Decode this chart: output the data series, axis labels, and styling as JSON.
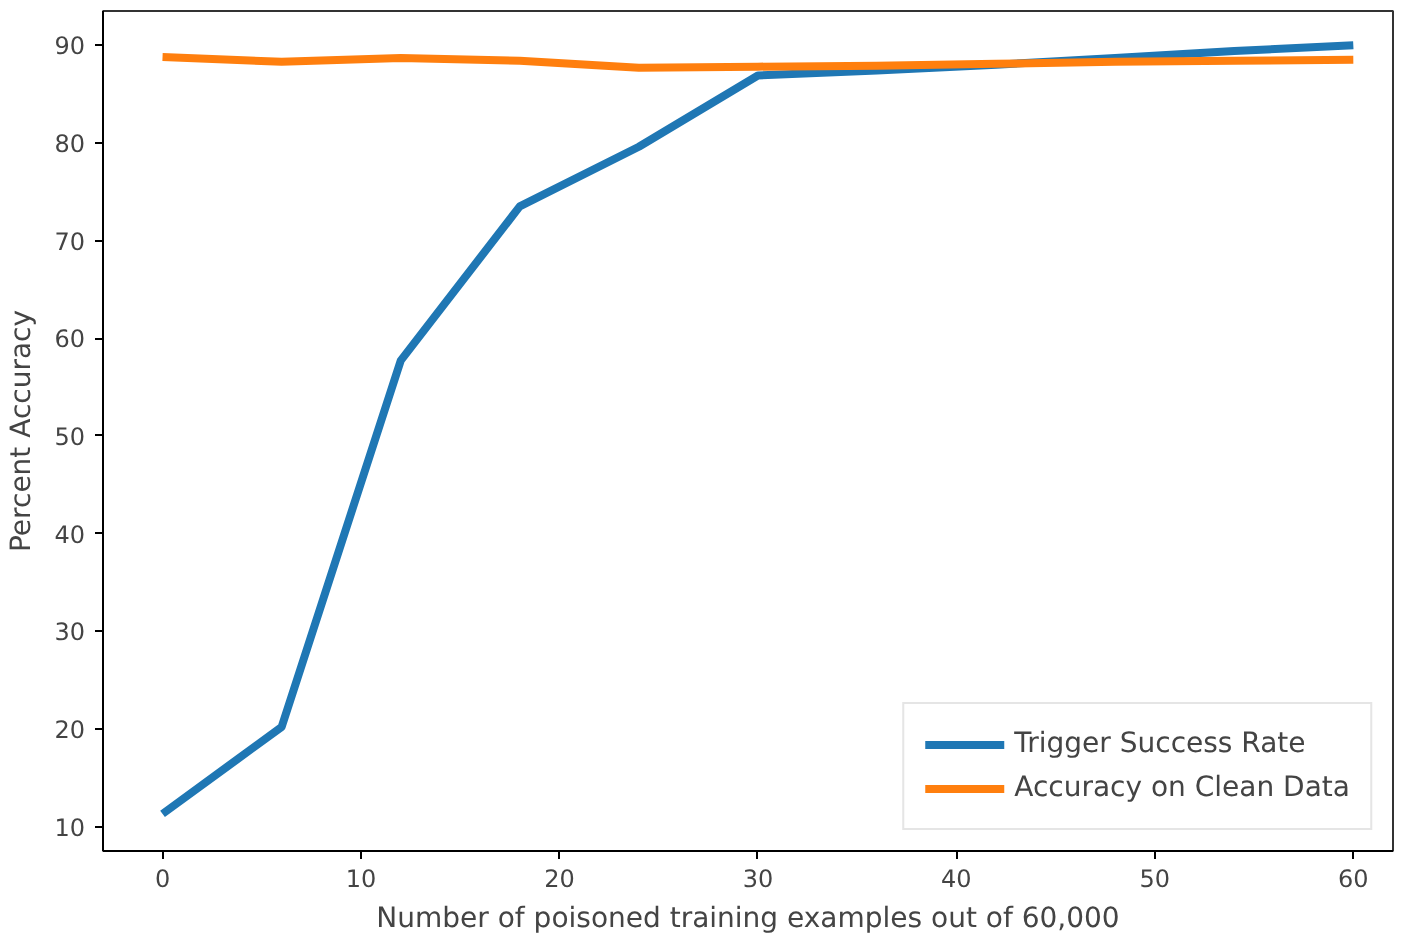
{
  "chart_data": {
    "type": "line",
    "xlabel": "Number of poisoned training examples out of 60,000",
    "ylabel": "Percent Accuracy",
    "x": [
      0,
      6,
      12,
      18,
      24,
      30,
      36,
      42,
      48,
      54,
      60
    ],
    "series": [
      {
        "name": "Trigger Success Rate",
        "color": "#1f77b4",
        "values": [
          11.3,
          20.2,
          57.7,
          73.5,
          79.6,
          86.9,
          87.4,
          88.0,
          88.7,
          89.4,
          90.0
        ]
      },
      {
        "name": "Accuracy on Clean Data",
        "color": "#ff7f0e",
        "values": [
          88.8,
          88.3,
          88.7,
          88.4,
          87.7,
          87.8,
          87.9,
          88.1,
          88.3,
          88.4,
          88.5
        ]
      }
    ],
    "xlim": [
      -3,
      62
    ],
    "ylim": [
      7.5,
      93.5
    ],
    "xticks": [
      0,
      10,
      20,
      30,
      40,
      50,
      60
    ],
    "yticks": [
      10,
      20,
      30,
      40,
      50,
      60,
      70,
      80,
      90
    ],
    "grid": false,
    "legend": "bottom right",
    "marker": "none",
    "line_style": "solid"
  }
}
